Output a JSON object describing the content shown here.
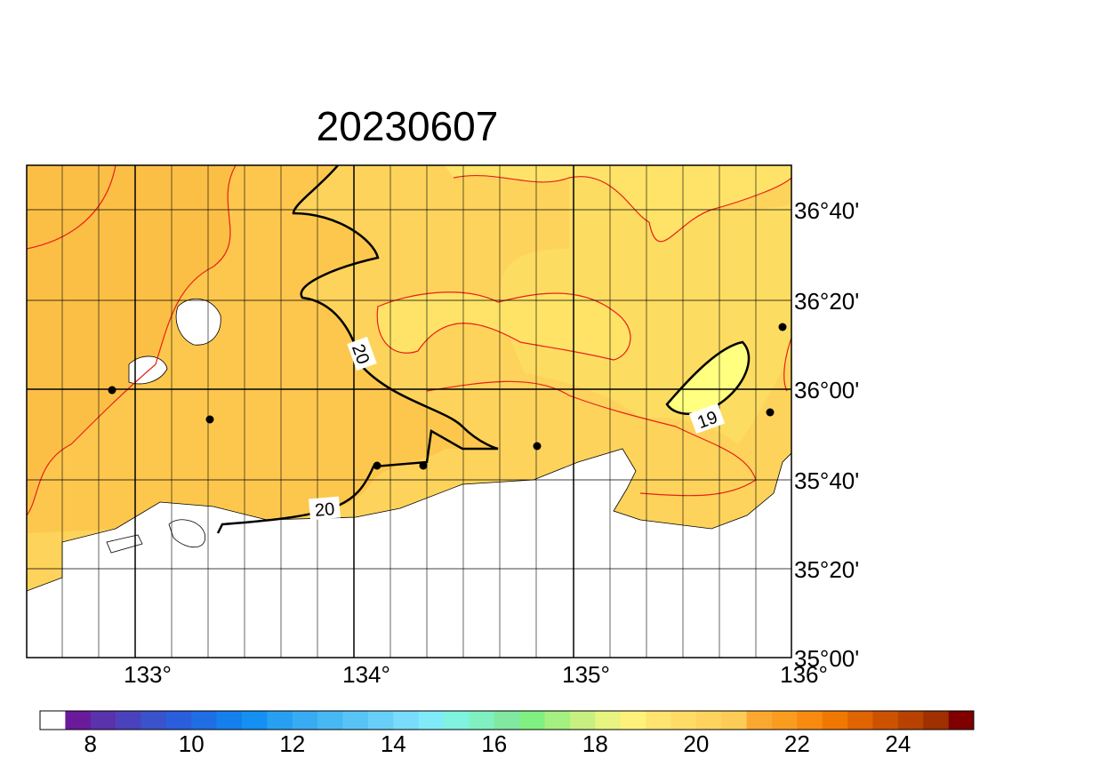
{
  "title": "20230607",
  "lon_labels": [
    "133°",
    "134°",
    "135°",
    "136°"
  ],
  "lat_labels": [
    "36°40'",
    "36°20'",
    "36°00'",
    "35°40'",
    "35°20'",
    "35°00'"
  ],
  "contour_labels": [
    "20",
    "20",
    "19"
  ],
  "colorbar": {
    "labels": [
      "8",
      "10",
      "12",
      "14",
      "16",
      "18",
      "20",
      "22",
      "24"
    ],
    "colors": [
      "#ffffff",
      "#6b1a9c",
      "#5a32ac",
      "#4a42bc",
      "#3a52cc",
      "#2a5edc",
      "#1f6ee4",
      "#1480ee",
      "#1490f2",
      "#28a0f2",
      "#38acf2",
      "#48b8f4",
      "#58c4f6",
      "#68d0f8",
      "#78dcfa",
      "#80eaf8",
      "#80f2e0",
      "#80f0c0",
      "#80e8a0",
      "#80f080",
      "#a4f080",
      "#c8f080",
      "#e8f480",
      "#fff27a",
      "#ffe470",
      "#ffdc66",
      "#fed45e",
      "#fdcc56",
      "#fba830",
      "#fa9c20",
      "#f88a10",
      "#f07800",
      "#e06400",
      "#cc5200",
      "#b84200",
      "#a03000",
      "#800000"
    ]
  }
}
